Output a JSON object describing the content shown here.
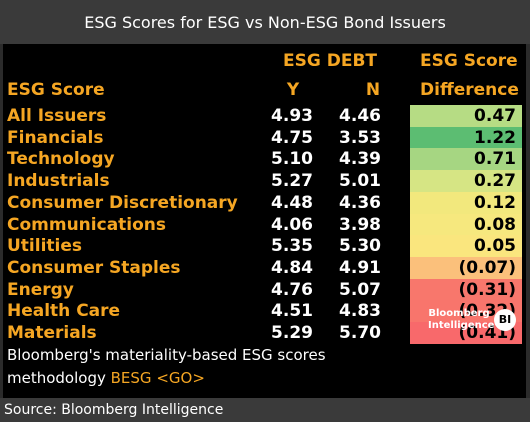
{
  "title": "ESG Scores for ESG vs Non-ESG Bond Issuers",
  "headers": {
    "esg_debt": "ESG DEBT",
    "esg_score_top": "ESG Score",
    "esg_score_col": "ESG Score",
    "y": "Y",
    "n": "N",
    "difference": "Difference"
  },
  "rows": [
    {
      "name": "All Issuers",
      "y": "4.93",
      "n": "4.46",
      "diff": "0.47",
      "color": "#b6dc84"
    },
    {
      "name": "Financials",
      "y": "4.75",
      "n": "3.53",
      "diff": "1.22",
      "color": "#5cbd72"
    },
    {
      "name": "Technology",
      "y": "5.10",
      "n": "4.39",
      "diff": "0.71",
      "color": "#a6d682"
    },
    {
      "name": "Industrials",
      "y": "5.27",
      "n": "5.01",
      "diff": "0.27",
      "color": "#d6e584"
    },
    {
      "name": "Consumer Discretionary",
      "y": "4.48",
      "n": "4.36",
      "diff": "0.12",
      "color": "#f2e87d"
    },
    {
      "name": "Communications",
      "y": "4.06",
      "n": "3.98",
      "diff": "0.08",
      "color": "#f6e87e"
    },
    {
      "name": "Utilities",
      "y": "5.35",
      "n": "5.30",
      "diff": "0.05",
      "color": "#fae67e"
    },
    {
      "name": "Consumer Staples",
      "y": "4.84",
      "n": "4.91",
      "diff": "(0.07)",
      "color": "#fbc07b"
    },
    {
      "name": "Energy",
      "y": "4.76",
      "n": "5.07",
      "diff": "(0.31)",
      "color": "#f8776c"
    },
    {
      "name": "Health Care",
      "y": "4.51",
      "n": "4.83",
      "diff": "(0.32)",
      "color": "#f8756c"
    },
    {
      "name": "Materials",
      "y": "5.29",
      "n": "5.70",
      "diff": "(0.41)",
      "color": "#f8696b"
    }
  ],
  "footnote": {
    "line1": "Bloomberg's materiality-based ESG scores",
    "line2_prefix": "methodology",
    "line2_code": "BESG <GO>"
  },
  "logo": {
    "line1": "Bloomberg",
    "line2": "Intelligence",
    "badge": "BI"
  },
  "source": "Source: Bloomberg Intelligence"
}
